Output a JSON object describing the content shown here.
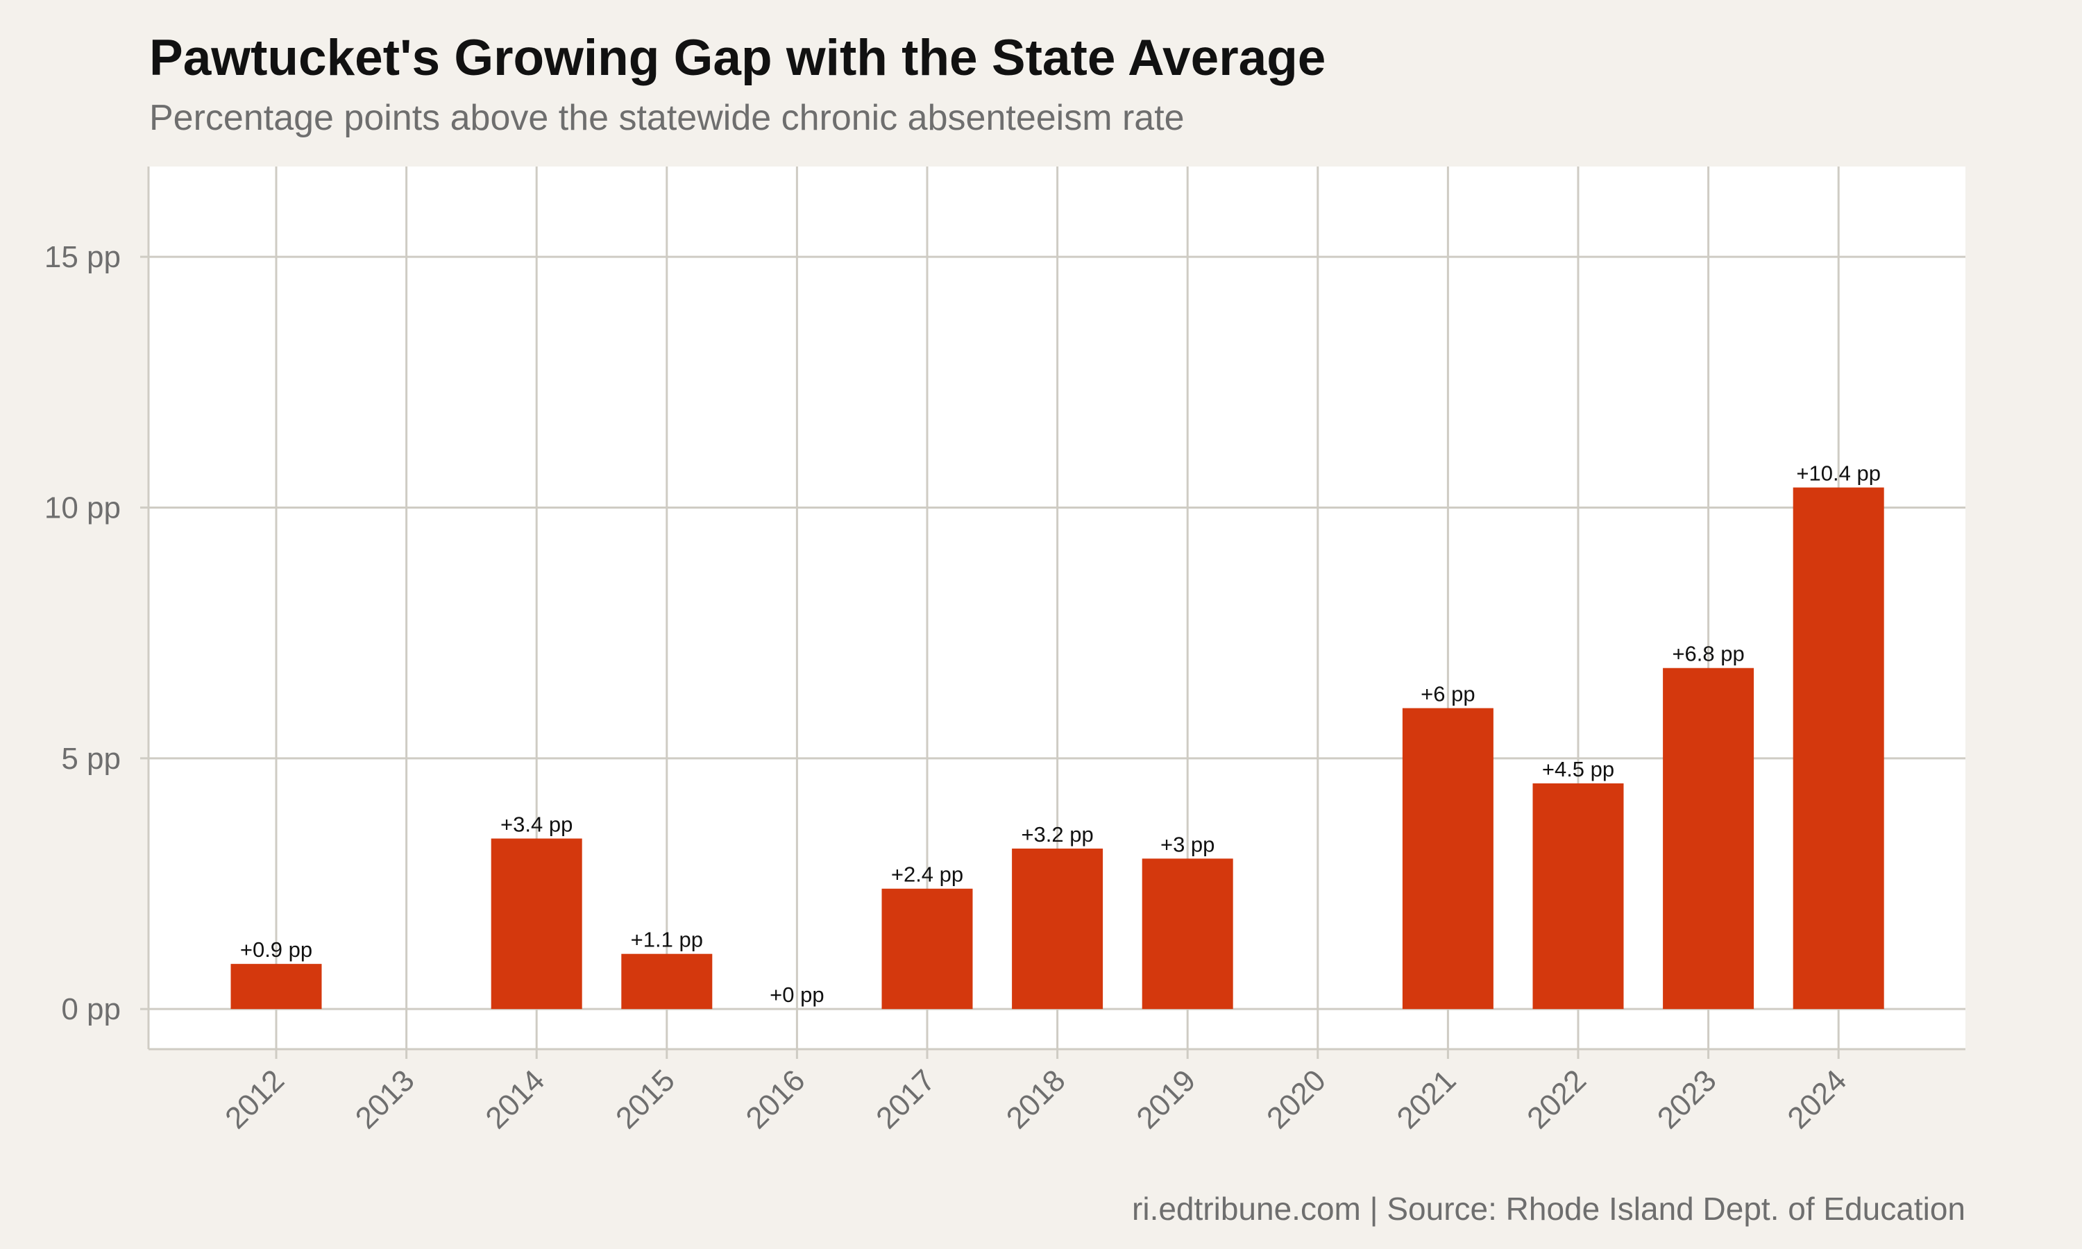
{
  "title": "Pawtucket's Growing Gap with the State Average",
  "subtitle": "Percentage points above the statewide chronic absenteeism rate",
  "caption": "ri.edtribune.com | Source: Rhode Island Dept. of Education",
  "colors": {
    "bar": "#d4380d",
    "background": "#f4f1ec",
    "panel": "#ffffff",
    "grid": "#cfccc4"
  },
  "chart_data": {
    "type": "bar",
    "title": "Pawtucket's Growing Gap with the State Average",
    "subtitle": "Percentage points above the statewide chronic absenteeism rate",
    "xlabel": "",
    "ylabel": "",
    "categories": [
      "2012",
      "2013",
      "2014",
      "2015",
      "2016",
      "2017",
      "2018",
      "2019",
      "2020",
      "2021",
      "2022",
      "2023",
      "2024"
    ],
    "values": [
      0.9,
      null,
      3.4,
      1.1,
      0,
      2.4,
      3.2,
      3,
      null,
      6,
      4.5,
      6.8,
      10.4
    ],
    "data_labels": [
      "+0.9 pp",
      "",
      "+3.4 pp",
      "+1.1 pp",
      "+0 pp",
      "+2.4 pp",
      "+3.2 pp",
      "+3 pp",
      "",
      "+6 pp",
      "+4.5 pp",
      "+6.8 pp",
      "+10.4 pp"
    ],
    "yticks": [
      0,
      5,
      10,
      15
    ],
    "ytick_labels": [
      "0 pp",
      "5 pp",
      "10 pp",
      "15 pp"
    ],
    "ylim": [
      -0.8,
      16.8
    ],
    "grid": true,
    "legend": "none"
  }
}
